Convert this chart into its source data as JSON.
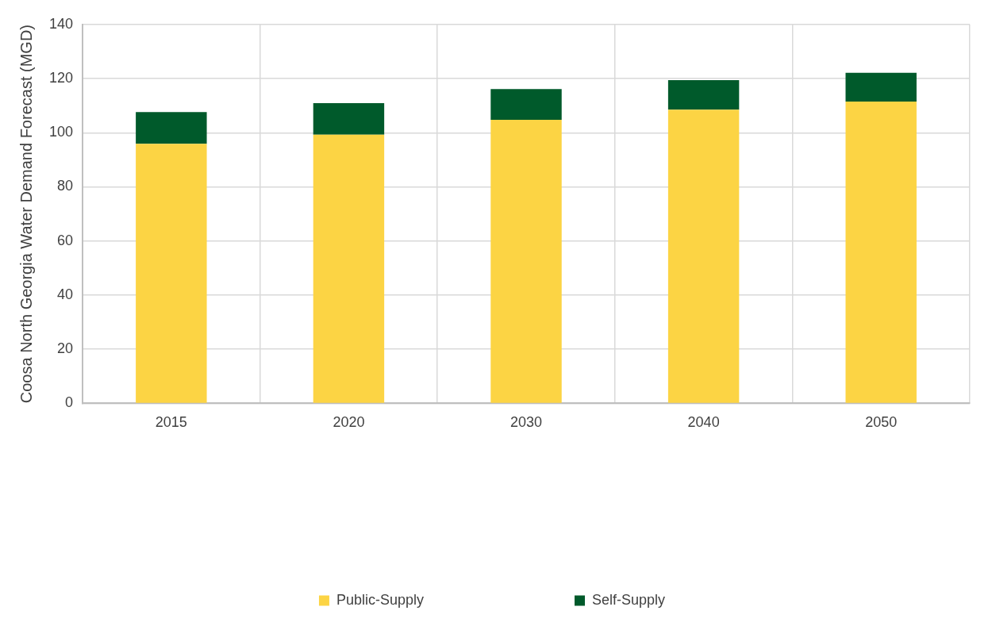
{
  "chart_data": {
    "type": "bar",
    "stacked": true,
    "ylabel": "Coosa North Georgia Water Demand Forecast (MGD)",
    "categories": [
      "2015",
      "2020",
      "2030",
      "2040",
      "2050"
    ],
    "series": [
      {
        "name": "Public-Supply",
        "color": "#fcd444",
        "values": [
          95.9,
          99.3,
          104.8,
          108.5,
          111.5
        ]
      },
      {
        "name": "Self-Supply",
        "color": "#005a2b",
        "values": [
          11.7,
          11.6,
          11.3,
          10.9,
          10.6
        ]
      }
    ],
    "ylim": [
      0,
      140
    ],
    "yticks": [
      0,
      20,
      40,
      60,
      80,
      100,
      120,
      140
    ],
    "grid": true,
    "legend": "bottom"
  }
}
